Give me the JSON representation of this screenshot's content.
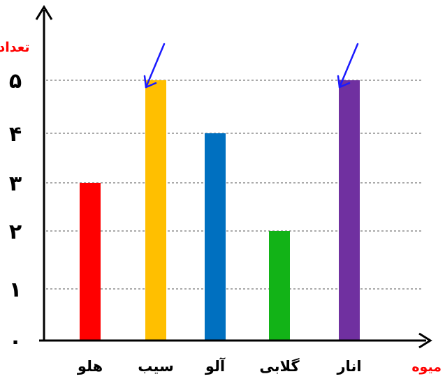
{
  "chart_data": {
    "type": "bar",
    "categories": [
      "هلو",
      "سیب",
      "آلو",
      "گلابی",
      "انار"
    ],
    "values": [
      3,
      5,
      4,
      2,
      5
    ],
    "colors": [
      "#ff0000",
      "#ffbf00",
      "#0070c0",
      "#12b317",
      "#7030a0"
    ],
    "tick_labels": [
      "۰",
      "۱",
      "۲",
      "۳",
      "۴",
      "۵"
    ],
    "tick_values": [
      0,
      1,
      2,
      3,
      4,
      5
    ],
    "xlabel": "میوه",
    "ylabel": "تعداد",
    "ylim": [
      0,
      5
    ],
    "grid": true,
    "grid_style": "dashed",
    "highlighted": [
      "سیب",
      "انار"
    ],
    "highlight_color": "#1a1aff"
  }
}
